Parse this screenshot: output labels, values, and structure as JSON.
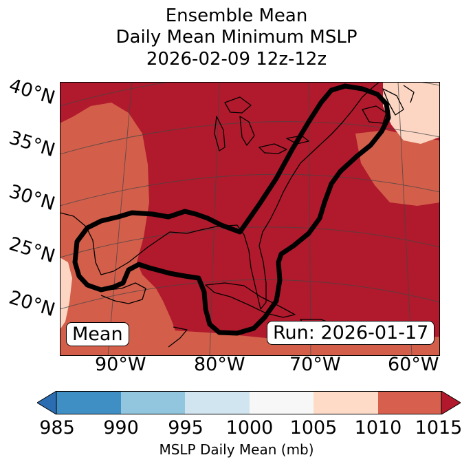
{
  "title": {
    "line1": "Ensemble Mean",
    "line2": "Daily Mean Minimum MSLP",
    "line3": "2026-02-09 12z-12z"
  },
  "map": {
    "lat_labels": [
      "40°N",
      "35°N",
      "30°N",
      "25°N",
      "20°N"
    ],
    "lon_labels": [
      "90°W",
      "80°W",
      "70°W",
      "60°W"
    ],
    "mean_box": "Mean",
    "run_box": "Run: 2026-01-17",
    "colors": {
      "c1005_1010": "#fcd6c3",
      "c1010_1015": "#d35f4b",
      "c1015_plus": "#b11a2c",
      "contour": "#000000",
      "coast": "#000000",
      "grid": "#444444"
    }
  },
  "colorbar": {
    "ticks": [
      "985",
      "990",
      "995",
      "1000",
      "1005",
      "1010",
      "1015"
    ],
    "label": "MSLP Daily Mean (mb)",
    "colors": [
      "#2c6db2",
      "#3f8fc4",
      "#92c5de",
      "#d1e5f0",
      "#f7f7f7",
      "#fddbc7",
      "#d6604d",
      "#b2182b"
    ]
  }
}
